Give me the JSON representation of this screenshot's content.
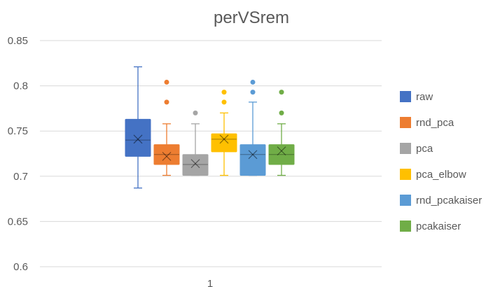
{
  "chart_data": {
    "type": "box",
    "title": "perVSrem",
    "categories": [
      "1"
    ],
    "ylim": [
      0.6,
      0.85
    ],
    "y_ticks": [
      "0.6",
      "0.65",
      "0.7",
      "0.75",
      "0.8",
      "0.85"
    ],
    "grid": true,
    "legend_position": "right",
    "series": [
      {
        "name": "raw",
        "color": "#4472C4",
        "min": 0.687,
        "q1": 0.722,
        "median": 0.74,
        "q3": 0.763,
        "max": 0.821,
        "mean": 0.741,
        "outliers": []
      },
      {
        "name": "rnd_pca",
        "color": "#ED7D31",
        "min": 0.701,
        "q1": 0.713,
        "median": 0.724,
        "q3": 0.735,
        "max": 0.758,
        "mean": 0.722,
        "outliers": [
          0.782,
          0.804
        ]
      },
      {
        "name": "pca",
        "color": "#A5A5A5",
        "min": 0.701,
        "q1": 0.701,
        "median": 0.713,
        "q3": 0.724,
        "max": 0.758,
        "mean": 0.714,
        "outliers": [
          0.77
        ]
      },
      {
        "name": "pca_elbow",
        "color": "#FFC000",
        "min": 0.701,
        "q1": 0.727,
        "median": 0.741,
        "q3": 0.747,
        "max": 0.77,
        "mean": 0.741,
        "outliers": [
          0.782,
          0.793
        ]
      },
      {
        "name": "rnd_pcakaiser",
        "color": "#5B9BD5",
        "min": 0.701,
        "q1": 0.701,
        "median": 0.724,
        "q3": 0.735,
        "max": 0.782,
        "mean": 0.724,
        "outliers": [
          0.793,
          0.804
        ]
      },
      {
        "name": "pcakaiser",
        "color": "#70AD47",
        "min": 0.701,
        "q1": 0.713,
        "median": 0.724,
        "q3": 0.735,
        "max": 0.758,
        "mean": 0.728,
        "outliers": [
          0.77,
          0.793
        ]
      }
    ]
  }
}
